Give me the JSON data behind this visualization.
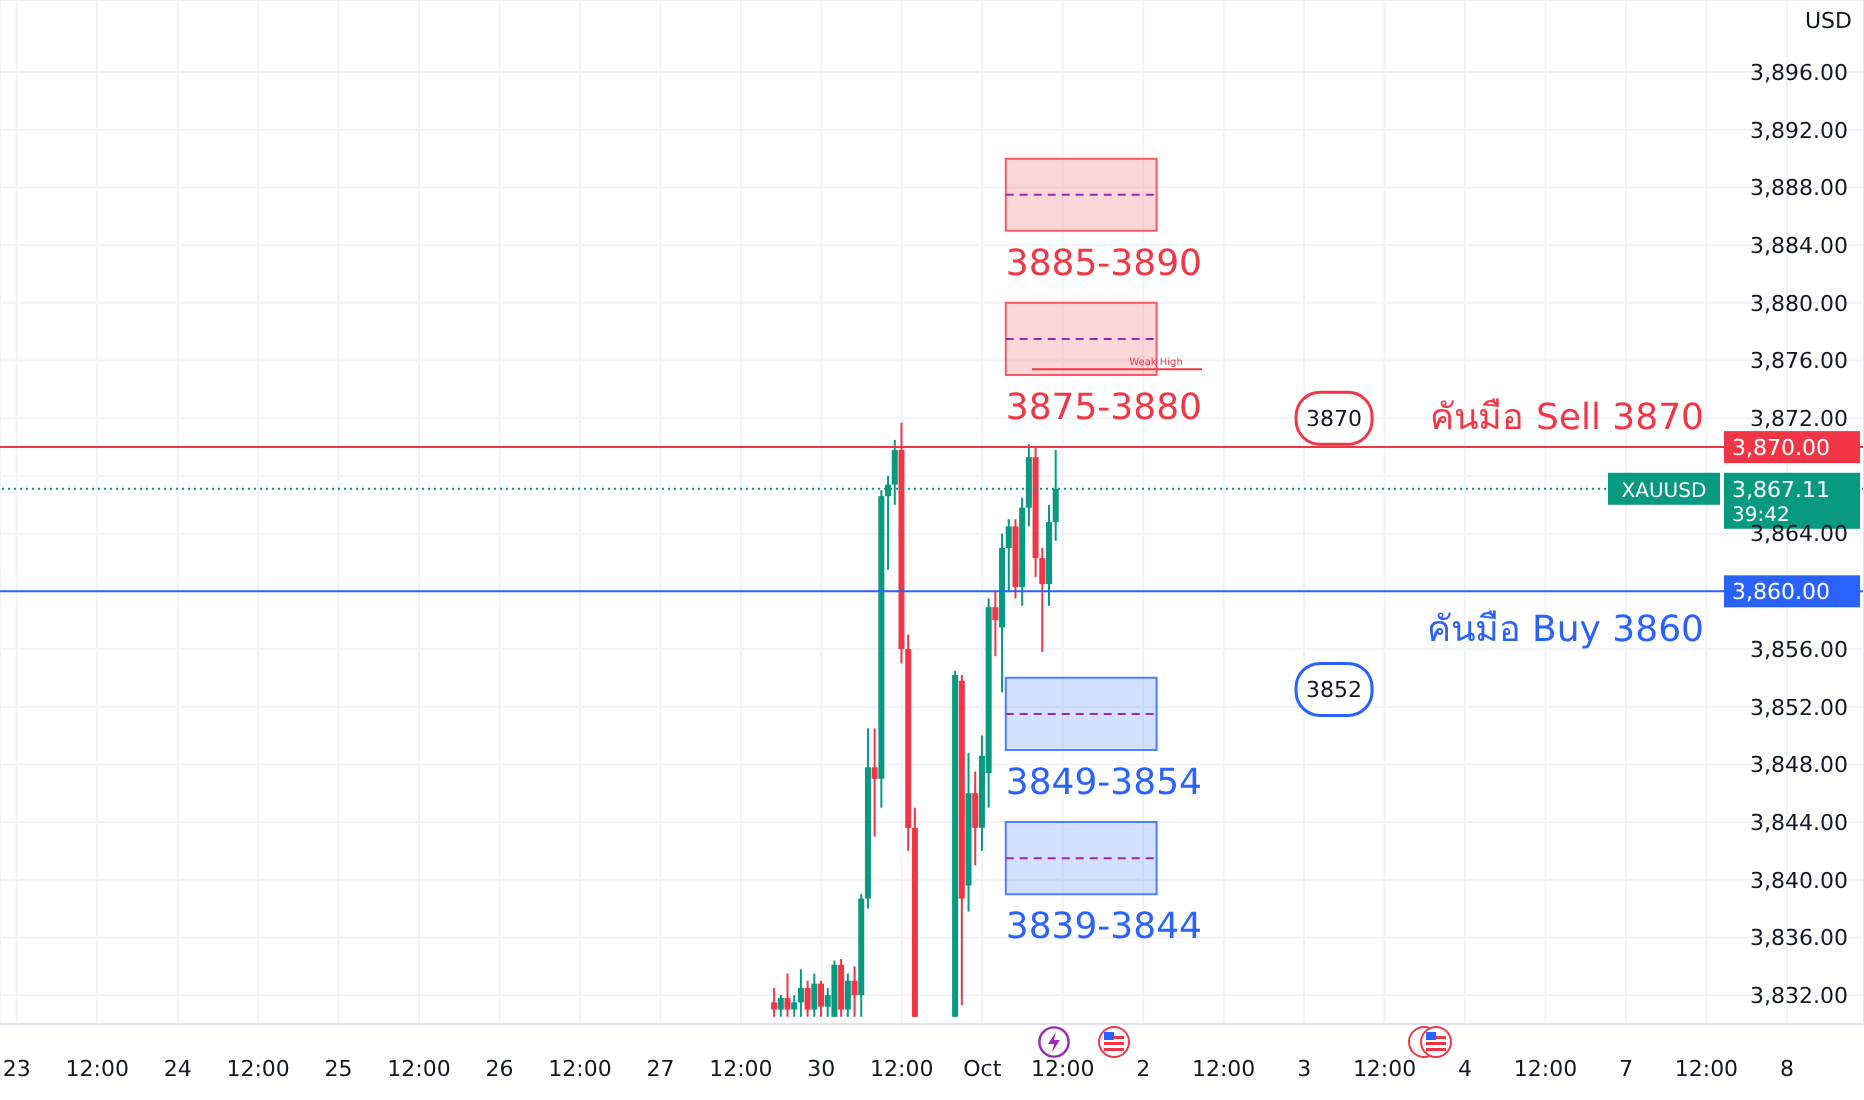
{
  "chart_data": {
    "type": "candlestick",
    "ylabel": "USD",
    "categories": [
      null,
      null,
      "23",
      null,
      null,
      null,
      null,
      null,
      null,
      null,
      null,
      null,
      null,
      null,
      "12:00",
      null,
      null,
      null,
      null,
      null,
      null,
      null,
      null,
      null,
      null,
      null,
      "24",
      null,
      null,
      null,
      null,
      null,
      null,
      null,
      null,
      null,
      null,
      null,
      "12:00",
      null,
      null,
      null,
      null,
      null,
      null,
      null,
      null,
      null,
      null,
      null,
      "25",
      null,
      null,
      null,
      null,
      null,
      null,
      null,
      null,
      null,
      null,
      null,
      "12:00",
      null,
      null,
      null,
      null,
      null,
      null,
      null,
      null,
      null,
      null,
      null,
      "26",
      null,
      null,
      null,
      null,
      null,
      null,
      null,
      null,
      null,
      null,
      null,
      "12:00",
      null,
      null,
      null,
      null,
      null,
      null,
      null,
      null,
      null,
      null,
      null,
      "27",
      null,
      null,
      null,
      null,
      null,
      null,
      null,
      null,
      null,
      null,
      null,
      "12:00",
      null,
      null,
      null,
      null,
      null,
      null,
      null,
      null,
      null,
      null,
      null,
      "30",
      null,
      null,
      null,
      null,
      null,
      null,
      null,
      null,
      null,
      null,
      null,
      "12:00",
      null,
      null,
      null,
      null,
      null,
      null,
      null,
      null,
      null,
      null,
      null,
      "Oct",
      null,
      null,
      null,
      null,
      null,
      null,
      null,
      null,
      null,
      null,
      null,
      "12:00",
      null,
      null,
      null,
      null,
      null,
      null,
      null,
      null,
      null,
      null,
      null,
      "2",
      null,
      null,
      null,
      null,
      null,
      null,
      null,
      null,
      null,
      null,
      null,
      "12:00",
      null,
      null,
      null,
      null,
      null,
      null,
      null,
      null,
      null,
      null,
      null,
      "3",
      null,
      null,
      null,
      null,
      null,
      null,
      null,
      null,
      null,
      null,
      null,
      "12:00",
      null,
      null,
      null,
      null,
      null,
      null,
      null,
      null,
      null,
      null,
      null,
      "4",
      null,
      null,
      null,
      null,
      null,
      null,
      null,
      null,
      null,
      null,
      null,
      "12:00",
      null,
      null,
      null,
      null,
      null,
      null,
      null,
      null,
      null,
      null,
      null,
      "7",
      null,
      null,
      null,
      null,
      null,
      null,
      null,
      null,
      null,
      null,
      null,
      "12:00",
      null,
      null,
      null,
      null,
      null,
      null,
      null,
      null,
      null,
      null,
      null,
      "8",
      null,
      null,
      null,
      null,
      null,
      null,
      null,
      null,
      null,
      null,
      null
    ],
    "ohlc": [
      null,
      null,
      null,
      null,
      null,
      null,
      null,
      null,
      null,
      null,
      null,
      null,
      null,
      null,
      null,
      null,
      null,
      null,
      null,
      null,
      null,
      null,
      null,
      null,
      null,
      null,
      null,
      null,
      null,
      null,
      null,
      null,
      null,
      null,
      null,
      null,
      null,
      null,
      null,
      null,
      null,
      null,
      null,
      null,
      null,
      null,
      null,
      null,
      null,
      null,
      null,
      null,
      null,
      null,
      null,
      null,
      null,
      null,
      null,
      null,
      null,
      null,
      null,
      null,
      null,
      null,
      null,
      null,
      null,
      null,
      null,
      null,
      null,
      null,
      null,
      null,
      null,
      null,
      null,
      null,
      null,
      null,
      null,
      null,
      null,
      null,
      null,
      null,
      null,
      null,
      null,
      null,
      null,
      null,
      null,
      null,
      null,
      null,
      null,
      null,
      null,
      null,
      null,
      null,
      null,
      null,
      null,
      null,
      null,
      null,
      null,
      null,
      null,
      null,
      null,
      [
        3831.5,
        3832.5,
        3830.5,
        3831
      ],
      [
        3831,
        3832,
        3830.5,
        3831.8
      ],
      [
        3831.8,
        3833.5,
        3830.5,
        3831
      ],
      [
        3831,
        3832,
        3830.5,
        3831.5
      ],
      [
        3831.5,
        3833.8,
        3830.5,
        3832.5
      ],
      [
        3832.5,
        3833,
        3830.5,
        3831
      ],
      [
        3831,
        3833.5,
        3830.5,
        3832.8
      ],
      [
        3832.8,
        3833,
        3830.5,
        3831.2
      ],
      [
        3831.2,
        3832.5,
        3830.5,
        3832
      ],
      [
        3830.5,
        3834.4,
        3830.5,
        3834.1
      ],
      [
        3834.1,
        3834.5,
        3830.5,
        3831
      ],
      [
        3831,
        3833.5,
        3830.5,
        3833
      ],
      [
        3833,
        3834,
        3830.5,
        3832
      ],
      [
        3832,
        3839,
        3830.5,
        3838.7
      ],
      [
        3838.7,
        3850.5,
        3838,
        3847.8
      ],
      [
        3847.8,
        3850.5,
        3843,
        3847
      ],
      [
        3847,
        3867,
        3845,
        3866.6
      ],
      [
        3866.6,
        3868,
        3861.5,
        3867.4
      ],
      [
        3867.4,
        3870.5,
        3866,
        3869.8
      ],
      [
        3869.8,
        3871.7,
        3855,
        3856
      ],
      [
        3856,
        3857,
        3842,
        3843.6
      ],
      [
        3843.6,
        3845,
        3830.5,
        3830.5
      ],
      null,
      null,
      null,
      null,
      null,
      [
        3830.5,
        3854.5,
        3830.5,
        3854.2
      ],
      [
        3853.8,
        3854.2,
        3831.3,
        3838.7
      ],
      [
        3839.6,
        3848.8,
        3837.8,
        3846
      ],
      [
        3846,
        3847.5,
        3841,
        3843.6
      ],
      [
        3843.6,
        3850,
        3842,
        3848.6
      ],
      [
        3847.4,
        3859.5,
        3845,
        3858.9
      ],
      [
        3858.9,
        3860,
        3855.5,
        3858
      ],
      [
        3857.5,
        3864,
        3853,
        3863
      ],
      [
        3863,
        3865,
        3860,
        3864.5
      ],
      [
        3864.5,
        3865,
        3859.5,
        3860.3
      ],
      [
        3860.3,
        3866.5,
        3859,
        3865.8
      ],
      [
        3865.8,
        3870.2,
        3864.5,
        3869.3
      ],
      [
        3869.3,
        3870,
        3861,
        3862.3
      ],
      [
        3862.3,
        3863,
        3855.8,
        3860.5
      ],
      [
        3860.5,
        3866,
        3859,
        3864.8
      ],
      [
        3864.8,
        3869.8,
        3863.5,
        3867.11
      ],
      null,
      null,
      null,
      null,
      null,
      null,
      null,
      null,
      null,
      null,
      null,
      null,
      null,
      null,
      null,
      null,
      null,
      null,
      null,
      null,
      null,
      null,
      null,
      null,
      null,
      null,
      null,
      null,
      null,
      null,
      null,
      null,
      null,
      null,
      null,
      null,
      null,
      null,
      null,
      null,
      null,
      null,
      null,
      null,
      null,
      null,
      null,
      null,
      null,
      null,
      null,
      null,
      null,
      null,
      null,
      null,
      null,
      null,
      null,
      null,
      null,
      null,
      null,
      null,
      null,
      null,
      null,
      null,
      null,
      null,
      null,
      null,
      null,
      null,
      null,
      null,
      null,
      null,
      null,
      null,
      null,
      null,
      null,
      null,
      null,
      null,
      null,
      null,
      null,
      null,
      null,
      null,
      null,
      null,
      null,
      null,
      null,
      null,
      null,
      null,
      null,
      null,
      null,
      null,
      null,
      null,
      null,
      null,
      null,
      null,
      null,
      null,
      null,
      null,
      null,
      null,
      null,
      null,
      null,
      null
    ],
    "colors": [
      null,
      null,
      null,
      null,
      null,
      null,
      null,
      null,
      null,
      null,
      null,
      null,
      null,
      null,
      null,
      null,
      null,
      null,
      null,
      null,
      null,
      null,
      null,
      null,
      null,
      null,
      null,
      null,
      null,
      null,
      null,
      null,
      null,
      null,
      null,
      null,
      null,
      null,
      null,
      null,
      null,
      null,
      null,
      null,
      null,
      null,
      null,
      null,
      null,
      null,
      null,
      null,
      null,
      null,
      null,
      null,
      null,
      null,
      null,
      null,
      null,
      null,
      null,
      null,
      null,
      null,
      null,
      null,
      null,
      null,
      null,
      null,
      null,
      null,
      null,
      null,
      null,
      null,
      null,
      null,
      null,
      null,
      null,
      null,
      null,
      null,
      null,
      null,
      null,
      null,
      null,
      null,
      null,
      null,
      null,
      null,
      null,
      null,
      null,
      null,
      null,
      null,
      null,
      null,
      null,
      null,
      null,
      null,
      null,
      null,
      null,
      null,
      null,
      null,
      null,
      "#f23645",
      "#089981",
      "#f23645",
      "#089981",
      "#089981",
      "#f23645",
      "#089981",
      "#f23645",
      "#089981",
      "#089981",
      "#f23645",
      "#089981",
      "#f23645",
      "#089981",
      "#089981",
      "#f23645",
      "#089981",
      "#089981",
      "#089981",
      "#f23645",
      "#f23645",
      "#f23645",
      null,
      null,
      null,
      null,
      null,
      "#089981",
      "#f23645",
      "#089981",
      "#f23645",
      "#089981",
      "#089981",
      "#f23645",
      "#089981",
      "#089981",
      "#f23645",
      "#089981",
      "#089981",
      "#f23645",
      "#f23645",
      "#089981",
      "#089981",
      null,
      null,
      null,
      null,
      null,
      null,
      null,
      null,
      null,
      null,
      null,
      null,
      null,
      null,
      null,
      null,
      null,
      null,
      null,
      null,
      null,
      null,
      null,
      null,
      null,
      null,
      null,
      null,
      null,
      null,
      null,
      null,
      null,
      null,
      null,
      null,
      null,
      null,
      null,
      null,
      null,
      null,
      null,
      null,
      null,
      null,
      null,
      null,
      null,
      null,
      null,
      null,
      null,
      null,
      null,
      null,
      null,
      null,
      null,
      null,
      null,
      null,
      null,
      null,
      null,
      null,
      null,
      null,
      null,
      null,
      null,
      null,
      null,
      null,
      null,
      null,
      null,
      null,
      null,
      null,
      null,
      null,
      null,
      null,
      null,
      null,
      null,
      null,
      null,
      null,
      null,
      null,
      null,
      null,
      null,
      null,
      null,
      null,
      null,
      null,
      null,
      null,
      null,
      null,
      null,
      null,
      null,
      null,
      null,
      null,
      null,
      null,
      null,
      null,
      null,
      null,
      null,
      null,
      null,
      null
    ],
    "ylim": [
      3830,
      3901
    ],
    "yticks": [
      {
        "value": 3832,
        "label": "3,832.00"
      },
      {
        "value": 3836,
        "label": "3,836.00"
      },
      {
        "value": 3840,
        "label": "3,840.00"
      },
      {
        "value": 3844,
        "label": "3,844.00"
      },
      {
        "value": 3848,
        "label": "3,848.00"
      },
      {
        "value": 3852,
        "label": "3,852.00"
      },
      {
        "value": 3856,
        "label": "3,856.00"
      },
      {
        "value": 3860,
        "label": null
      },
      {
        "value": 3864,
        "label": "3,864.00"
      },
      {
        "value": 3868,
        "label": null
      },
      {
        "value": 3872,
        "label": "3,872.00"
      },
      {
        "value": 3876,
        "label": "3,876.00"
      },
      {
        "value": 3880,
        "label": "3,880.00"
      },
      {
        "value": 3884,
        "label": "3,884.00"
      },
      {
        "value": 3888,
        "label": "3,888.00"
      },
      {
        "value": 3892,
        "label": "3,892.00"
      },
      {
        "value": 3896,
        "label": "3,896.00"
      }
    ],
    "grid": true,
    "ref_lines": [
      {
        "axis": "y",
        "value": 3870,
        "label": "คันมือ Sell 3870",
        "color": "#f23645",
        "line_style": "solid"
      },
      {
        "axis": "y",
        "value": 3860,
        "label": "คันมือ Buy 3860",
        "color": "#2962ff",
        "line_style": "solid"
      },
      {
        "axis": "y",
        "value": 3867.11,
        "label": "XAUUSD",
        "color": "#089981",
        "line_style": "dotted"
      }
    ],
    "bands": [
      {
        "axis": "y",
        "from": 3885,
        "to": 3890,
        "label": "3885-3890",
        "color": "#f23645"
      },
      {
        "axis": "y",
        "from": 3875,
        "to": 3880,
        "label": "3875-3880",
        "color": "#f23645"
      },
      {
        "axis": "y",
        "from": 3849,
        "to": 3854,
        "label": "3849-3854",
        "color": "#2962ff"
      },
      {
        "axis": "y",
        "from": 3839,
        "to": 3844,
        "label": "3839-3844",
        "color": "#2962ff"
      }
    ],
    "annotations": [
      {
        "text": "Weak High",
        "y": 3875.4
      },
      {
        "text": "3870",
        "y": 3872
      },
      {
        "text": "3852",
        "y": 3853.2
      },
      {
        "text": "3,870.00",
        "y": 3870
      },
      {
        "text": "3,860.00",
        "y": 3860
      },
      {
        "text": "3,867.11",
        "y": 3867.11
      },
      "39:42"
    ]
  }
}
